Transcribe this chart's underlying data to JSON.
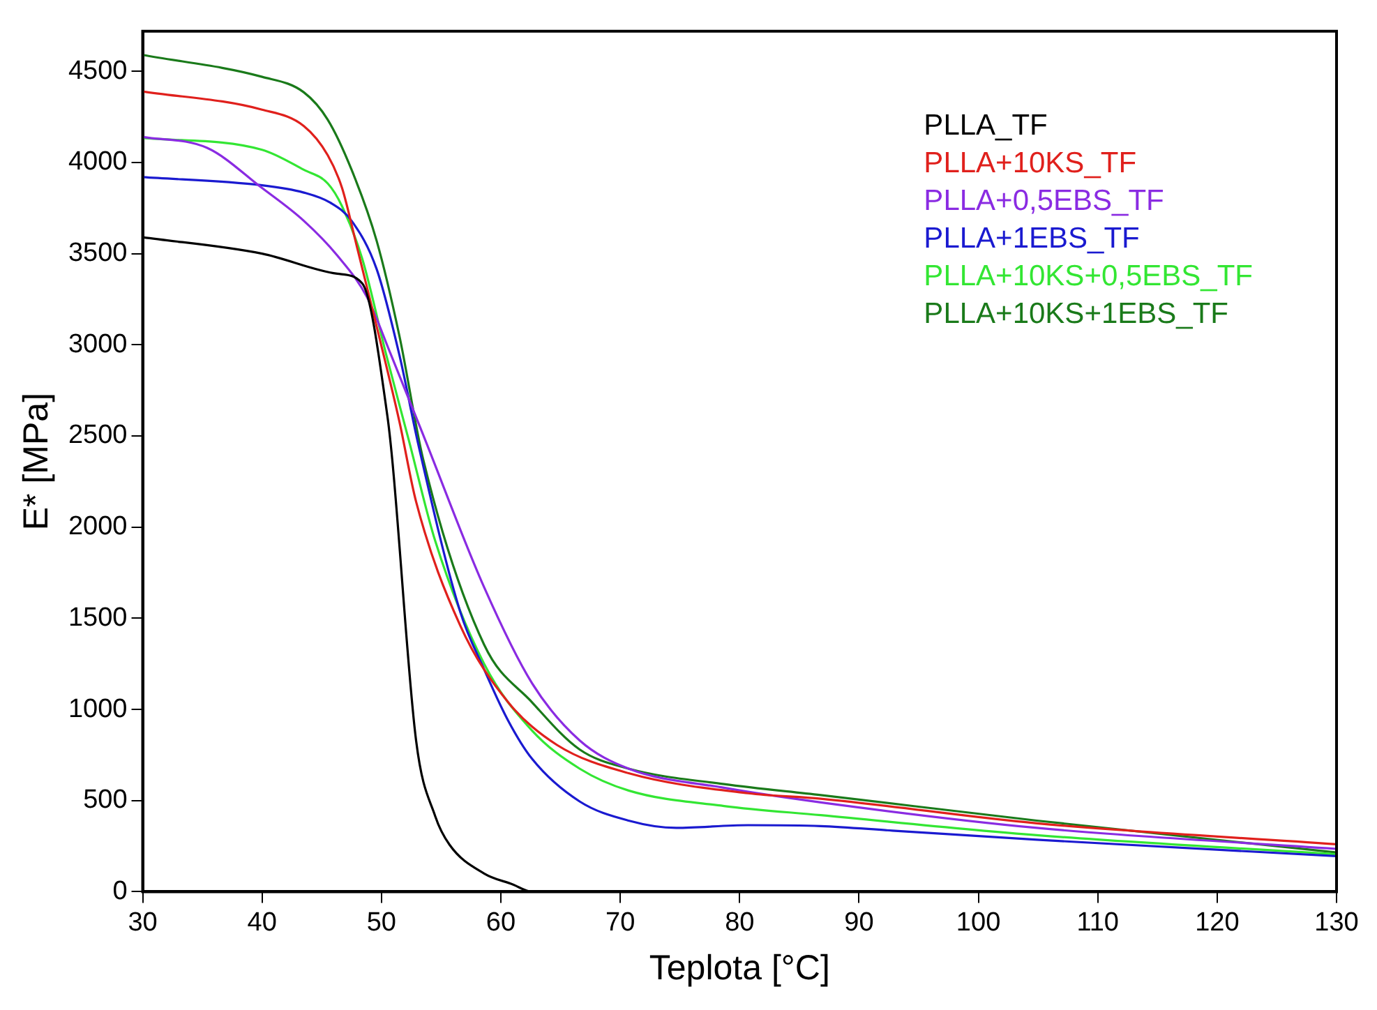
{
  "chart_data": {
    "type": "line",
    "xlabel": "Teplota [°C]",
    "ylabel": "E* [MPa]",
    "xlim": [
      30,
      130
    ],
    "xticks": [
      30,
      40,
      50,
      60,
      70,
      80,
      90,
      100,
      110,
      120,
      130
    ],
    "ylim": [
      0,
      4720
    ],
    "yticks": [
      0,
      500,
      1000,
      1500,
      2000,
      2500,
      3000,
      3500,
      4000,
      4500
    ],
    "grid": false,
    "legend": "top right",
    "marker": "none",
    "line_style": "solid",
    "series": [
      {
        "name": "PLLA_TF",
        "color": "#000000",
        "x": [
          30,
          40,
          46.3,
          48.4,
          50.5,
          50.9,
          52.9,
          54.5,
          55.7,
          58.6,
          61,
          62.6,
          80,
          100,
          130
        ],
        "values": [
          3590,
          3500,
          3390,
          3336,
          2608,
          2373,
          830,
          415,
          258,
          100,
          40,
          0,
          0,
          0,
          0
        ]
      },
      {
        "name": "PLLA+10KS_TF",
        "color": "#e0201c",
        "x": [
          30,
          40,
          43.5,
          45.5,
          46.7,
          47.9,
          49.6,
          51.5,
          52.9,
          56.6,
          60.6,
          64.7,
          70.7,
          80.7,
          86.8,
          104.9,
          130
        ],
        "values": [
          4390,
          4290,
          4200,
          4040,
          3860,
          3550,
          3100,
          2580,
          2140,
          1460,
          1040,
          805,
          650,
          540,
          510,
          375,
          260
        ]
      },
      {
        "name": "PLLA+0,5EBS_TF",
        "color": "#8a2be2",
        "x": [
          30,
          35.4,
          40,
          43.5,
          46.3,
          48.8,
          50.8,
          53.5,
          58.6,
          62.6,
          66.6,
          70.7,
          78.7,
          86.8,
          104.9,
          130
        ],
        "values": [
          4140,
          4080,
          3860,
          3680,
          3490,
          3260,
          2945,
          2505,
          1670,
          1145,
          830,
          675,
          570,
          490,
          350,
          235
        ]
      },
      {
        "name": "PLLA+1EBS_TF",
        "color": "#1a1ad0",
        "x": [
          30,
          40,
          43.5,
          45.7,
          47.5,
          49.6,
          51.5,
          53.1,
          56.6,
          58.6,
          60.6,
          62.6,
          66.6,
          70.7,
          74.7,
          80.7,
          86.8,
          92.8,
          104.9,
          130
        ],
        "values": [
          3920,
          3875,
          3835,
          3780,
          3680,
          3415,
          2945,
          2450,
          1535,
          1220,
          940,
          730,
          495,
          390,
          350,
          365,
          360,
          335,
          285,
          195
        ]
      },
      {
        "name": "PLLA+10KS+0,5EBS_TF",
        "color": "#33e633",
        "x": [
          30,
          40,
          43.5,
          45.5,
          46.7,
          48.4,
          50.4,
          52.3,
          54.5,
          58.6,
          62.6,
          66.6,
          70.7,
          78.7,
          86.8,
          104.9,
          130
        ],
        "values": [
          4135,
          4070,
          3960,
          3885,
          3760,
          3470,
          2945,
          2475,
          1925,
          1250,
          885,
          675,
          555,
          470,
          420,
          310,
          205
        ]
      },
      {
        "name": "PLLA+10KS+1EBS_TF",
        "color": "#1a7a1a",
        "x": [
          30,
          40,
          43.5,
          45.5,
          47.5,
          49.6,
          51.5,
          53.5,
          58.6,
          62.6,
          66.6,
          70.7,
          78.7,
          86.8,
          104.9,
          130
        ],
        "values": [
          4590,
          4470,
          4385,
          4235,
          3960,
          3570,
          3050,
          2370,
          1355,
          1040,
          780,
          675,
          590,
          530,
          390,
          215
        ]
      }
    ]
  }
}
